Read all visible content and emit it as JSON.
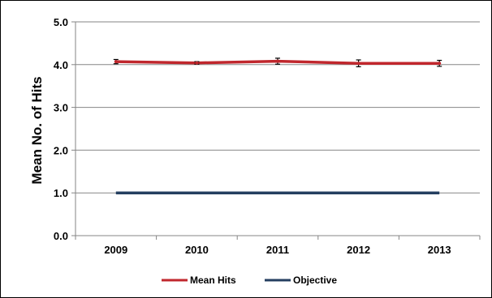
{
  "chart_data": {
    "type": "line",
    "title": "",
    "xlabel": "",
    "ylabel": "Mean No. of Hits",
    "categories": [
      "2009",
      "2010",
      "2011",
      "2012",
      "2013"
    ],
    "ylim": [
      0,
      5
    ],
    "yticks": [
      0,
      1,
      2,
      3,
      4,
      5
    ],
    "ytick_labels": [
      "0.0",
      "1.0",
      "2.0",
      "3.0",
      "4.0",
      "5.0"
    ],
    "grid": true,
    "legend": "bottom",
    "series": [
      {
        "name": "Mean Hits",
        "values": [
          4.07,
          4.04,
          4.08,
          4.03,
          4.03
        ],
        "error": [
          0.05,
          0.03,
          0.07,
          0.08,
          0.07
        ],
        "color": "#c0272d"
      },
      {
        "name": "Objective",
        "values": [
          1.0,
          1.0,
          1.0,
          1.0,
          1.0
        ],
        "color": "#243f60"
      }
    ]
  }
}
